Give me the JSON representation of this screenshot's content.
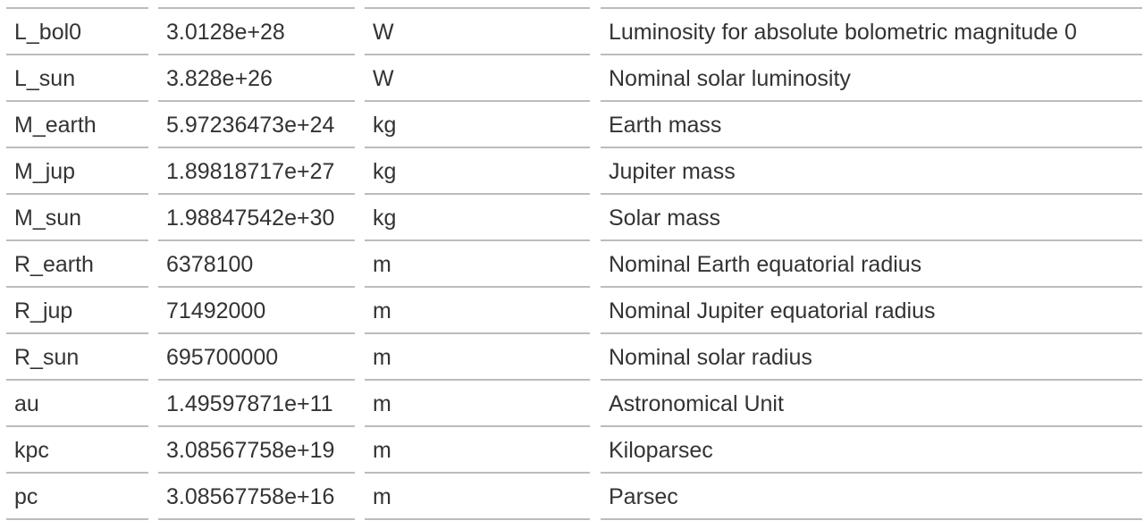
{
  "table": {
    "rows": [
      {
        "name": "L_bol0",
        "value": "3.0128e+28",
        "unit": "W",
        "description": "Luminosity for absolute bolometric magnitude 0"
      },
      {
        "name": "L_sun",
        "value": "3.828e+26",
        "unit": "W",
        "description": "Nominal solar luminosity"
      },
      {
        "name": "M_earth",
        "value": "5.97236473e+24",
        "unit": "kg",
        "description": "Earth mass"
      },
      {
        "name": "M_jup",
        "value": "1.89818717e+27",
        "unit": "kg",
        "description": "Jupiter mass"
      },
      {
        "name": "M_sun",
        "value": "1.98847542e+30",
        "unit": "kg",
        "description": "Solar mass"
      },
      {
        "name": "R_earth",
        "value": "6378100",
        "unit": "m",
        "description": "Nominal Earth equatorial radius"
      },
      {
        "name": "R_jup",
        "value": "71492000",
        "unit": "m",
        "description": "Nominal Jupiter equatorial radius"
      },
      {
        "name": "R_sun",
        "value": "695700000",
        "unit": "m",
        "description": "Nominal solar radius"
      },
      {
        "name": "au",
        "value": "1.49597871e+11",
        "unit": "m",
        "description": "Astronomical Unit"
      },
      {
        "name": "kpc",
        "value": "3.08567758e+19",
        "unit": "m",
        "description": "Kiloparsec"
      },
      {
        "name": "pc",
        "value": "3.08567758e+16",
        "unit": "m",
        "description": "Parsec"
      }
    ]
  }
}
